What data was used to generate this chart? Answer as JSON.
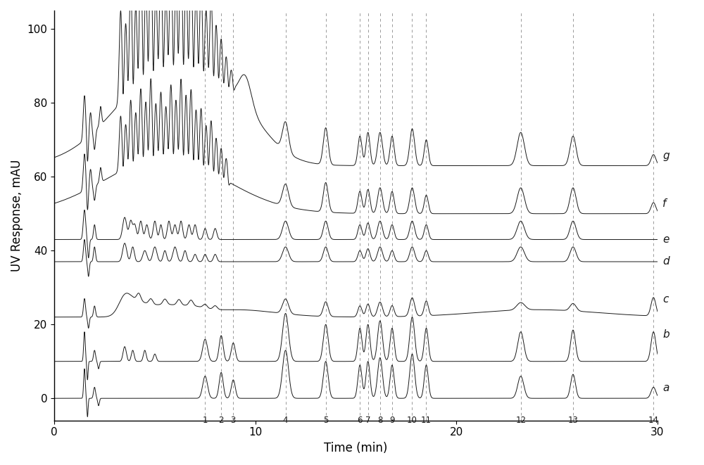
{
  "xlabel": "Time (min)",
  "ylabel": "UV Response, mAU",
  "xlim": [
    0,
    30
  ],
  "ylim": [
    -6,
    105
  ],
  "yticks": [
    0,
    20,
    40,
    60,
    80,
    100
  ],
  "xticks": [
    0,
    10,
    20,
    30
  ],
  "trace_labels": [
    "a",
    "b",
    "c",
    "d",
    "e",
    "f",
    "g"
  ],
  "peak_positions": [
    7.5,
    8.3,
    8.9,
    11.5,
    13.5,
    15.2,
    15.6,
    16.2,
    16.8,
    17.8,
    18.5,
    23.2,
    25.8,
    29.8
  ],
  "peak_labels": [
    "1",
    "2",
    "3",
    "4",
    "5",
    "6",
    "7",
    "8",
    "9",
    "10",
    "11",
    "12",
    "13",
    "14"
  ],
  "line_color": "#1a1a1a",
  "dashed_color": "#999999",
  "background_color": "#ffffff",
  "label_fontsize": 11,
  "axis_fontsize": 12,
  "tick_fontsize": 11
}
